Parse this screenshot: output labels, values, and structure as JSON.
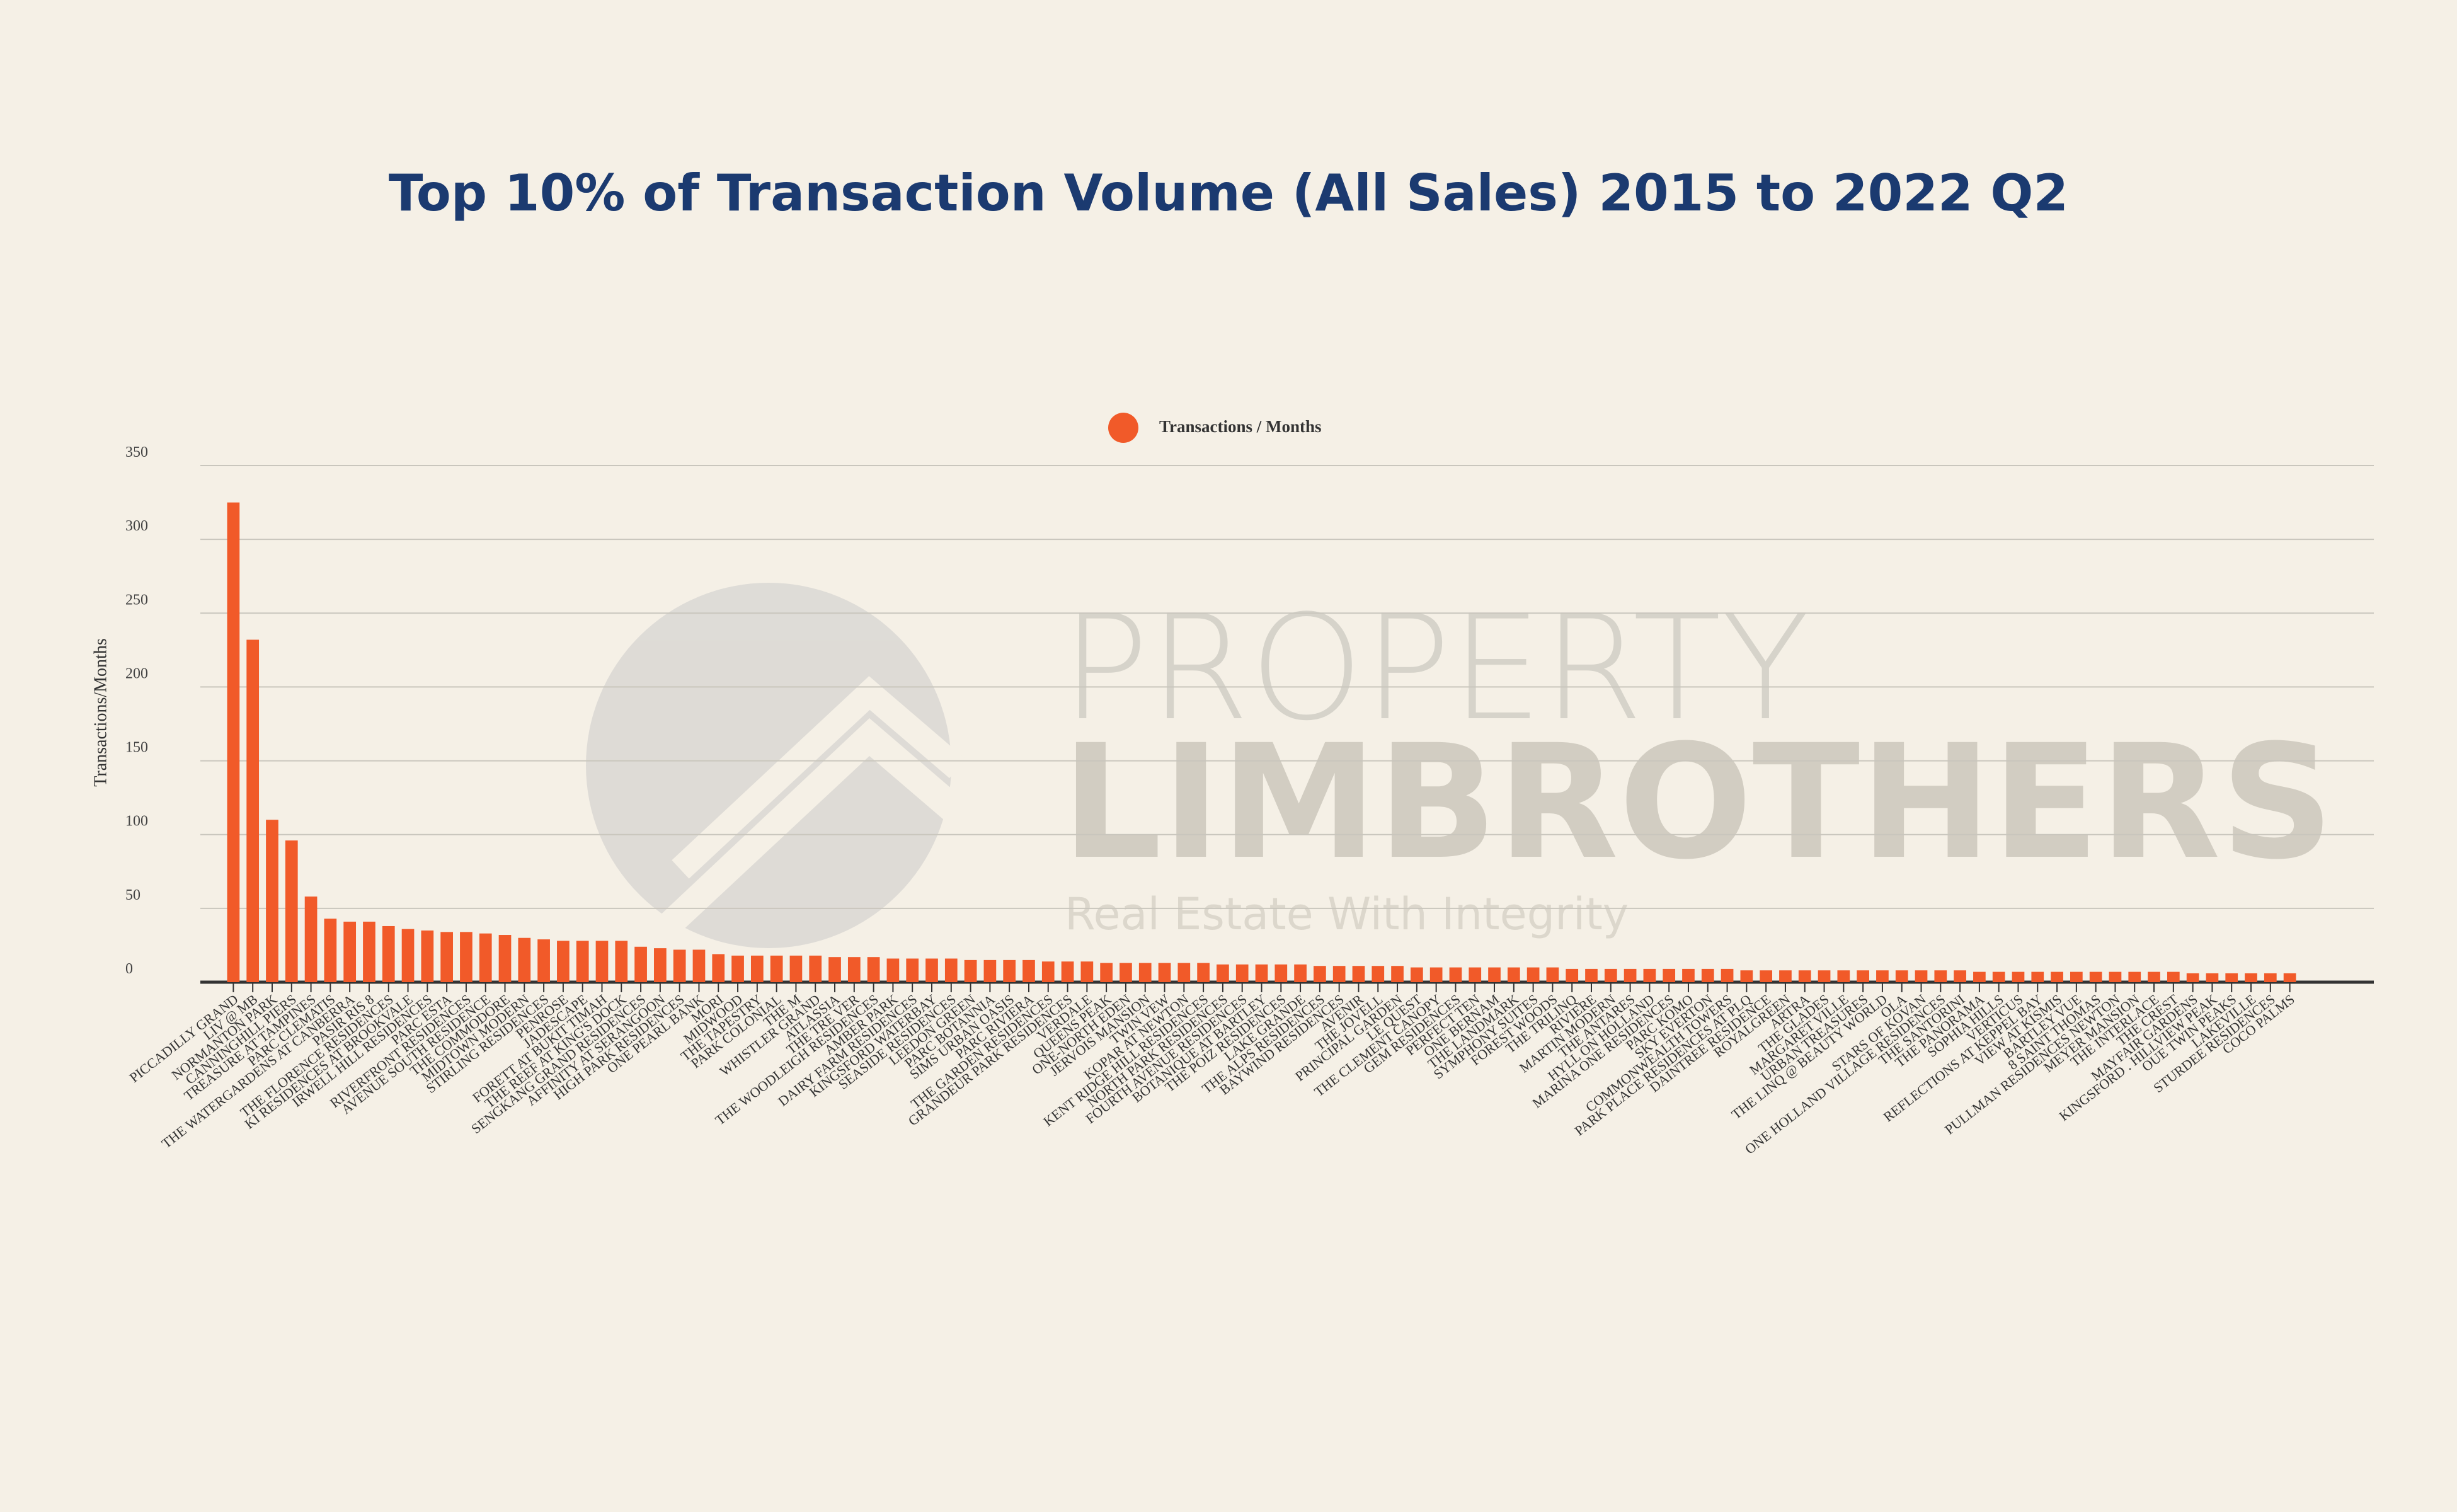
{
  "chart_data": {
    "type": "bar",
    "title": "Top 10% of Transaction Volume (All Sales) 2015 to 2022 Q2",
    "y_label": "Transactions/Months",
    "legend": "top",
    "series": [
      {
        "name": "Transactions / Months",
        "color": "#f15a29",
        "values": [
          325,
          232,
          110,
          96,
          58,
          43,
          41,
          41,
          38,
          36,
          35,
          34,
          34,
          33,
          32,
          30,
          29,
          28,
          28,
          28,
          28,
          24,
          23,
          22,
          22,
          19,
          18,
          18,
          18,
          18,
          18,
          17,
          17,
          17,
          16,
          16,
          16,
          16,
          15,
          15,
          15,
          15,
          14,
          14,
          14,
          13,
          13,
          13,
          13,
          13,
          13,
          12,
          12,
          12,
          12,
          12,
          11,
          11,
          11,
          11,
          11,
          10,
          10,
          10,
          10,
          10,
          10,
          10,
          10,
          9,
          9,
          9,
          9,
          9,
          9,
          9,
          9,
          9,
          8,
          8,
          8,
          8,
          8,
          8,
          8,
          8,
          8,
          8,
          8,
          8,
          7,
          7,
          7,
          7,
          7,
          7,
          7,
          7,
          7,
          7,
          7,
          6,
          6,
          6,
          6,
          6,
          6
        ]
      }
    ],
    "categories": [
      "PICCADILLY GRAND",
      "LIV @ MB",
      "NORMANTON PARK",
      "CANNINGHILL PIERS",
      "TREASURE AT TAMPINES",
      "PARC CLEMATIS",
      "THE WATERGARDENS AT CANBERRA",
      "PASIR RIS 8",
      "THE FLORENCE RESIDENCES",
      "KI RESIDENCES AT BROOKVALE",
      "IRWELL HILL RESIDENCES",
      "PARC ESTA",
      "RIVERFRONT RESIDENCES",
      "AVENUE SOUTH RESIDENCE",
      "THE COMMODORE",
      "MIDTOWN MODERN",
      "STIRLING RESIDENCES",
      "PENROSE",
      "JADESCAPE",
      "FORETT AT BUKIT TIMAH",
      "THE REEF AT KING'S DOCK",
      "SENGKANG GRAND RESIDENCES",
      "AFFINITY AT SERANGOON",
      "HIGH PARK RESIDENCES",
      "ONE PEARL BANK",
      "MORI",
      "MIDWOOD",
      "THE TAPESTRY",
      "PARK COLONIAL",
      "THE M",
      "WHISTLER GRAND",
      "ATLASSIA",
      "THE TRE VER",
      "THE WOODLEIGH RESIDENCES",
      "AMBER PARK",
      "DAIRY FARM RESIDENCES",
      "KINGSFORD WATERBAY",
      "SEASIDE RESIDENCES",
      "LEEDON GREEN",
      "PARC BOTANNIA",
      "SIMS URBAN OASIS",
      "PARC RIVIERA",
      "THE GARDEN RESIDENCES",
      "GRANDEUR PARK RESIDENCES",
      "VERDALE",
      "QUEENS PEAK",
      "ONE-NORTH EDEN",
      "JERVOIS MANSION",
      "TWIN VEW",
      "KOPAR AT NEWTON",
      "KENT RIDGE HILL RESIDENCES",
      "NORTH PARK RESIDENCES",
      "FOURTH AVENUE RESIDENCES",
      "BOTANIQUE AT BARTLEY",
      "THE POIZ RESIDENCES",
      "LAKE GRANDE",
      "THE ALPS RESIDENCES",
      "BAYWIND RESIDENCES",
      "AVENIR",
      "THE JOVELL",
      "PRINCIPAL GARDEN",
      "LE QUEST",
      "THE CLEMENT CANOPY",
      "GEM RESIDENCES",
      "PERFECT TEN",
      "ONE BERNAM",
      "THE LANDMARK",
      "SYMPHONY SUITES",
      "FOREST WOODS",
      "THE TRILINQ",
      "RIVIERE",
      "MARTIN MODERN",
      "THE ANTARES",
      "HYLL ON HOLLAND",
      "MARINA ONE RESIDENCES",
      "PARC KOMO",
      "SKY EVERTON",
      "COMMONWEALTH TOWERS",
      "PARK PLACE RESIDENCES AT PLQ",
      "DAINTREE RESIDENCE",
      "ROYALGREEN",
      "ARTRA",
      "THE GLADES",
      "MARGARET VILLE",
      "URBAN TREASURES",
      "THE LINQ @ BEAUTY WORLD",
      "OLA",
      "STARS OF KOVAN",
      "ONE HOLLAND VILLAGE RESIDENCES",
      "THE SANTORINI",
      "THE PANORAMA",
      "SOPHIA HILLS",
      "VERTICUS",
      "REFLECTIONS AT KEPPEL BAY",
      "VIEW AT KISMIS",
      "BARTLEY VUE",
      "8 SAINT THOMAS",
      "PULLMAN RESIDENCES NEWTON",
      "MEYER MANSION",
      "THE INTERLACE",
      "THE CREST",
      "MAYFAIR GARDENS",
      "KINGSFORD . HILLVIEW PEAK",
      "OUE TWIN PEAKS",
      "LAKEVILLE",
      "STURDEE RESIDENCES",
      "COCO PALMS"
    ],
    "ylim": [
      0,
      350
    ],
    "yticks": [
      0,
      50,
      100,
      150,
      200,
      250,
      300,
      350
    ],
    "grid": true
  },
  "watermark": {
    "line1": "PROPERTY",
    "line2": "LIMBROTHERS",
    "tagline": "Real Estate With Integrity"
  }
}
